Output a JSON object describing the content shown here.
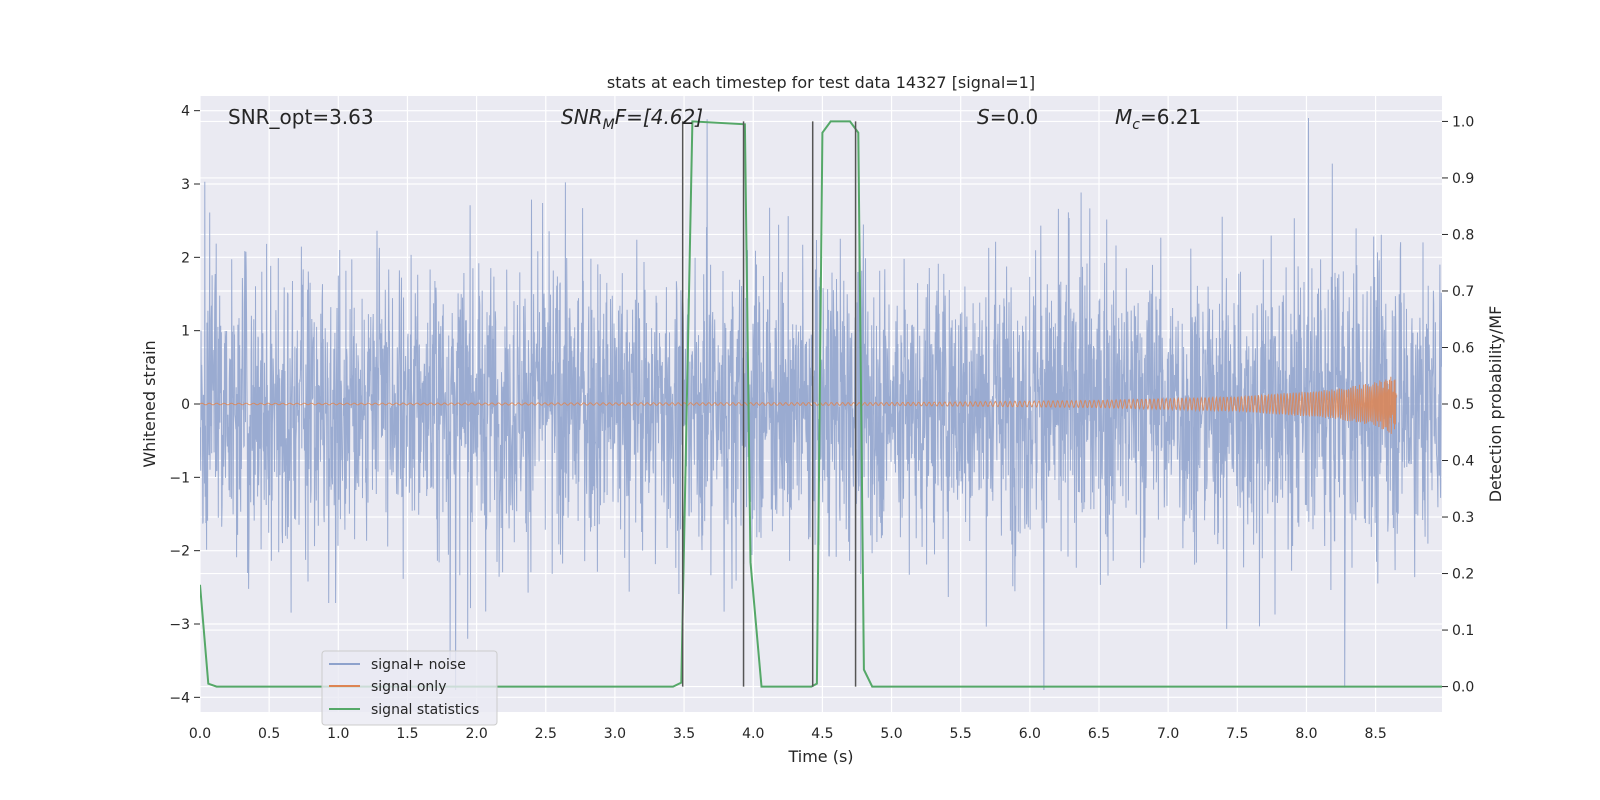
{
  "chart_data": {
    "type": "line",
    "title": "stats at each timestep for test data 14327 [signal=1]",
    "xlabel": "Time (s)",
    "ylabel": "Whitened strain",
    "ylabel_right": "Detection probability/MF",
    "xlim": [
      0.0,
      8.98
    ],
    "ylim": [
      -4.2,
      4.2
    ],
    "ylim_right": [
      -0.045,
      1.045
    ],
    "x_ticks": [
      0.0,
      0.5,
      1.0,
      1.5,
      2.0,
      2.5,
      3.0,
      3.5,
      4.0,
      4.5,
      5.0,
      5.5,
      6.0,
      6.5,
      7.0,
      7.5,
      8.0,
      8.5
    ],
    "x_tick_labels": [
      "0.0",
      "0.5",
      "1.0",
      "1.5",
      "2.0",
      "2.5",
      "3.0",
      "3.5",
      "4.0",
      "4.5",
      "5.0",
      "5.5",
      "6.0",
      "6.5",
      "7.0",
      "7.5",
      "8.0",
      "8.5"
    ],
    "y_ticks": [
      -4,
      -3,
      -2,
      -1,
      0,
      1,
      2,
      3,
      4
    ],
    "y_tick_labels": [
      "−4",
      "−3",
      "−2",
      "−1",
      "0",
      "1",
      "2",
      "3",
      "4"
    ],
    "y_right_ticks": [
      0.0,
      0.1,
      0.2,
      0.3,
      0.4,
      0.5,
      0.6,
      0.7,
      0.8,
      0.9,
      1.0
    ],
    "y_right_tick_labels": [
      "0.0",
      "0.1",
      "0.2",
      "0.3",
      "0.4",
      "0.5",
      "0.6",
      "0.7",
      "0.8",
      "0.9",
      "1.0"
    ],
    "grid": true,
    "legend_position": "lower-left",
    "annotations": {
      "snr_opt": "SNR_opt=3.63",
      "snr_mf_main": "SNR",
      "snr_mf_sub": "M",
      "snr_mf_rest": "F=[4.62]",
      "s_main": "S",
      "s_rest": "=0.0",
      "mc_main": "M",
      "mc_sub": "c",
      "mc_rest": "=6.21"
    },
    "series": [
      {
        "name": "signal+ noise",
        "color": "#8ea2cc",
        "kind": "noise",
        "duration": 8.98,
        "typical_amplitude": 1.55,
        "peak_amplitude": 3.9
      },
      {
        "name": "signal only",
        "color": "#dd8452",
        "kind": "chirp",
        "x_end": 8.65,
        "envelope": [
          [
            0.0,
            0.01
          ],
          [
            5.0,
            0.02
          ],
          [
            6.5,
            0.05
          ],
          [
            7.5,
            0.1
          ],
          [
            8.2,
            0.2
          ],
          [
            8.5,
            0.3
          ],
          [
            8.62,
            0.42
          ],
          [
            8.65,
            0.45
          ]
        ]
      },
      {
        "name": "signal statistics",
        "color": "#55a868",
        "kind": "line",
        "axis": "right",
        "x": [
          0.0,
          0.06,
          0.12,
          3.42,
          3.48,
          3.52,
          3.56,
          3.94,
          3.98,
          4.06,
          4.42,
          4.46,
          4.5,
          4.56,
          4.7,
          4.76,
          4.8,
          4.86,
          8.98
        ],
        "y": [
          0.18,
          0.005,
          0.0,
          0.0,
          0.007,
          0.5,
          1.0,
          0.995,
          0.22,
          0.0,
          0.0,
          0.005,
          0.98,
          1.0,
          1.0,
          0.98,
          0.03,
          0.0,
          0.0
        ]
      }
    ],
    "vlines": {
      "color": "#555555",
      "x": [
        3.49,
        3.93,
        4.43,
        4.74
      ],
      "y_range": [
        0.0,
        1.0
      ]
    }
  }
}
